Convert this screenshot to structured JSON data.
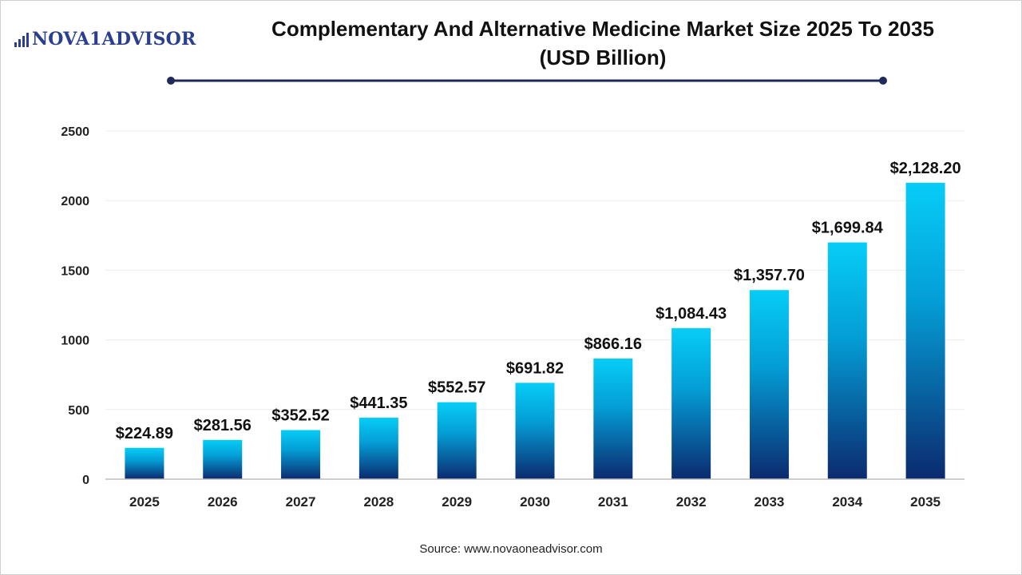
{
  "brand": {
    "logo_text": "NOVA1ADVISOR",
    "logo_icon": "bar-chart-icon"
  },
  "header": {
    "title_line1": "Complementary And Alternative Medicine Market Size 2025 To 2035",
    "title_line2": "(USD Billion)"
  },
  "footer": {
    "source": "Source: www.novaoneadvisor.com"
  },
  "colors": {
    "bar_top": "#06cdf7",
    "bar_bottom": "#0b2a6e",
    "divider": "#1f2a5a",
    "logo": "#2b3f8f"
  },
  "chart_data": {
    "type": "bar",
    "title": "Complementary And Alternative Medicine Market Size 2025 To 2035 (USD Billion)",
    "xlabel": "",
    "ylabel": "",
    "categories": [
      "2025",
      "2026",
      "2027",
      "2028",
      "2029",
      "2030",
      "2031",
      "2032",
      "2033",
      "2034",
      "2035"
    ],
    "values": [
      224.89,
      281.56,
      352.52,
      441.35,
      552.57,
      691.82,
      866.16,
      1084.43,
      1357.7,
      1699.84,
      2128.2
    ],
    "data_labels": [
      "$224.89",
      "$281.56",
      "$352.52",
      "$441.35",
      "$552.57",
      "$691.82",
      "$866.16",
      "$1,084.43",
      "$1,357.70",
      "$1,699.84",
      "$2,128.20"
    ],
    "ylim": [
      0,
      2500
    ],
    "yticks": [
      0,
      500,
      1000,
      1500,
      2000,
      2500
    ],
    "grid": true,
    "legend": "none"
  }
}
